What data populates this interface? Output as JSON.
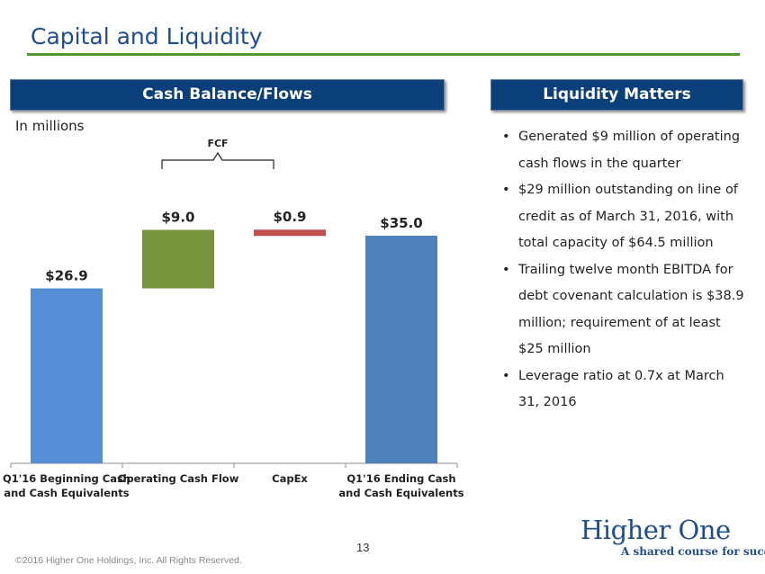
{
  "page": {
    "title": "Capital and Liquidity",
    "page_number": "13",
    "copyright": "©2016 Higher One Holdings, Inc. All Rights Reserved."
  },
  "left_panel": {
    "header": "Cash Balance/Flows",
    "units_note": "In millions",
    "bracket_label": "FCF"
  },
  "right_panel": {
    "header": "Liquidity Matters",
    "bullets": [
      "Generated $9 million of operating cash flows in the quarter",
      "$29 million outstanding on line of credit as of March 31, 2016, with total capacity of $64.5 million",
      "Trailing twelve month EBITDA for debt covenant calculation is $38.9 million; requirement of at least $25 million",
      "Leverage  ratio at 0.7x at March 31, 2016"
    ]
  },
  "logo": {
    "brand_text": "Higher One",
    "tagline": "A shared course for success"
  },
  "chart_data": {
    "type": "bar",
    "subtype": "waterfall",
    "categories": [
      [
        "Q1'16 Beginning Cash",
        "and Cash Equivalents"
      ],
      [
        "Operating Cash Flow"
      ],
      [
        "CapEx"
      ],
      [
        "Q1'16 Ending Cash",
        "and Cash Equivalents"
      ]
    ],
    "bars": [
      {
        "base": 0,
        "value": 26.9,
        "label": "$26.9",
        "color": "#558ed5"
      },
      {
        "base": 26.9,
        "value": 9.0,
        "label": "$9.0",
        "color": "#77933c"
      },
      {
        "base": 35.0,
        "value": 0.9,
        "label": "$0.9",
        "color": "#c0504d"
      },
      {
        "base": 0,
        "value": 35.0,
        "label": "$35.0",
        "color": "#4f81bd"
      }
    ],
    "ylim": [
      0,
      38
    ],
    "grid": false
  }
}
